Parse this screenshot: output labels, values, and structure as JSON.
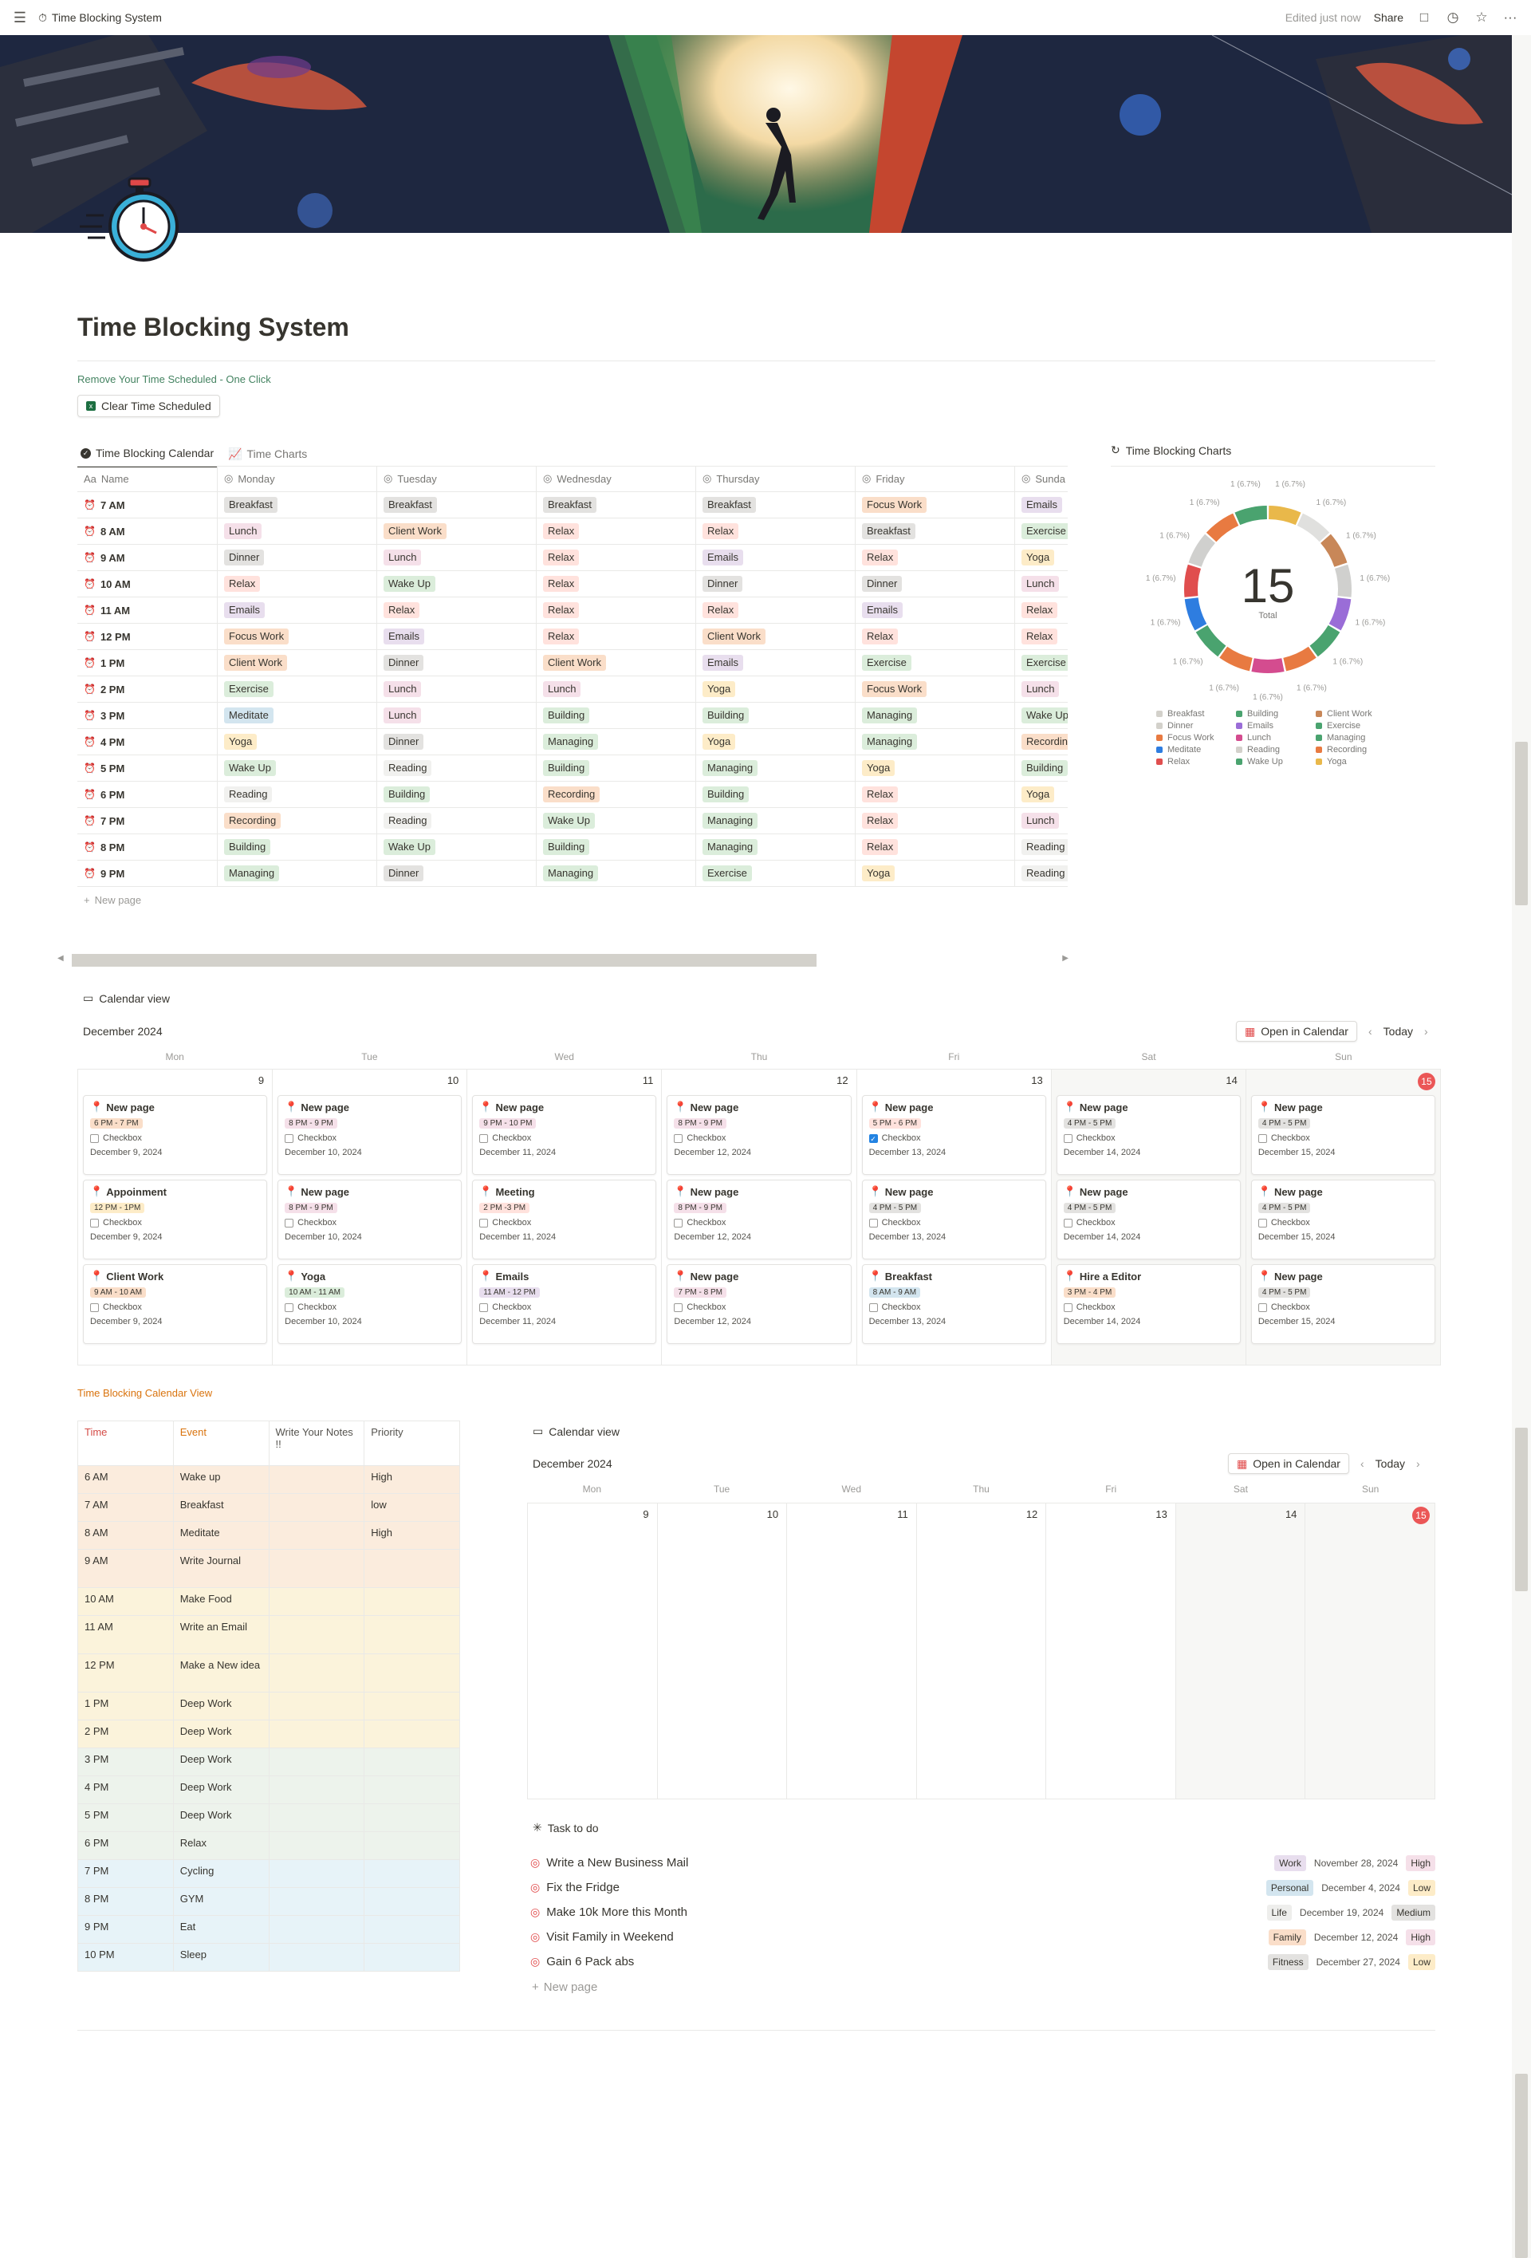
{
  "topbar": {
    "title": "Time Blocking System",
    "edited": "Edited just now",
    "share": "Share"
  },
  "page": {
    "title": "Time Blocking System",
    "clear_hint": "Remove Your Time Scheduled - One Click",
    "clear_button": "Clear Time Scheduled"
  },
  "tabs": [
    "Time Blocking Calendar",
    "Time Charts"
  ],
  "grid": {
    "headers": [
      "Name",
      "Monday",
      "Tuesday",
      "Wednesday",
      "Thursday",
      "Friday",
      "Sunda"
    ],
    "rows": [
      {
        "name": "7 AM",
        "cells": [
          "Breakfast",
          "Breakfast",
          "Breakfast",
          "Breakfast",
          "Focus Work",
          "Emails"
        ]
      },
      {
        "name": "8 AM",
        "cells": [
          "Lunch",
          "Client Work",
          "Relax",
          "Relax",
          "Breakfast",
          "Exercise"
        ]
      },
      {
        "name": "9 AM",
        "cells": [
          "Dinner",
          "Lunch",
          "Relax",
          "Emails",
          "Relax",
          "Yoga"
        ]
      },
      {
        "name": "10  AM",
        "cells": [
          "Relax",
          "Wake Up",
          "Relax",
          "Dinner",
          "Dinner",
          "Lunch"
        ]
      },
      {
        "name": "11  AM",
        "cells": [
          "Emails",
          "Relax",
          "Relax",
          "Relax",
          "Emails",
          "Relax"
        ]
      },
      {
        "name": "12 PM",
        "cells": [
          "Focus Work",
          "Emails",
          "Relax",
          "Client Work",
          "Relax",
          "Relax"
        ]
      },
      {
        "name": "1 PM",
        "cells": [
          "Client Work",
          "Dinner",
          "Client Work",
          "Emails",
          "Exercise",
          "Exercise"
        ]
      },
      {
        "name": "2 PM",
        "cells": [
          "Exercise",
          "Lunch",
          "Lunch",
          "Yoga",
          "Focus Work",
          "Lunch"
        ]
      },
      {
        "name": "3 PM",
        "cells": [
          "Meditate",
          "Lunch",
          "Building",
          "Building",
          "Managing",
          "Wake Up"
        ]
      },
      {
        "name": "4 PM",
        "cells": [
          "Yoga",
          "Dinner",
          "Managing",
          "Yoga",
          "Managing",
          "Recordin"
        ]
      },
      {
        "name": "5  PM",
        "cells": [
          "Wake Up",
          "Reading",
          "Building",
          "Managing",
          "Yoga",
          "Building"
        ]
      },
      {
        "name": "6 PM",
        "cells": [
          "Reading",
          "Building",
          "Recording",
          "Building",
          "Relax",
          "Yoga"
        ]
      },
      {
        "name": "7  PM",
        "cells": [
          "Recording",
          "Reading",
          "Wake Up",
          "Managing",
          "Relax",
          "Lunch"
        ]
      },
      {
        "name": "8 PM",
        "cells": [
          "Building",
          "Wake Up",
          "Building",
          "Managing",
          "Relax",
          "Reading"
        ]
      },
      {
        "name": "9 PM",
        "cells": [
          "Managing",
          "Dinner",
          "Managing",
          "Exercise",
          "Yoga",
          "Reading"
        ]
      }
    ],
    "new_page": "New page"
  },
  "tag_colors": {
    "Breakfast": "#e3e2e0",
    "Focus Work": "#fadec9",
    "Emails": "#e8deee",
    "Lunch": "#f5e0e9",
    "Client Work": "#fadec9",
    "Relax": "#ffe2dd",
    "Exercise": "#dbeddb",
    "Yoga": "#fdecc8",
    "Dinner": "#e3e2e0",
    "Wake Up": "#dbeddb",
    "Building": "#dbeddb",
    "Managing": "#dbeddb",
    "Meditate": "#d3e5ef",
    "Recording": "#fadec9",
    "Recordin": "#fadec9",
    "Reading": "#f1f1ef"
  },
  "charts": {
    "title": "Time Blocking Charts",
    "total": "15",
    "total_label": "Total",
    "slice_label": "1 (6.7%)",
    "slice_colors": [
      "#e9b84a",
      "#e0e0de",
      "#c88758",
      "#d0d0ce",
      "#9a6dd7",
      "#4aa36f",
      "#e87a41",
      "#d44c8f",
      "#e87a41",
      "#4aa36f",
      "#2e7de0",
      "#e04e4e",
      "#d0d0ce",
      "#e87a41",
      "#4aa36f"
    ],
    "legend": [
      {
        "label": "Breakfast",
        "color": "#d3d1cb"
      },
      {
        "label": "Building",
        "color": "#4aa36f"
      },
      {
        "label": "Client Work",
        "color": "#c88758"
      },
      {
        "label": "Dinner",
        "color": "#d3d1cb"
      },
      {
        "label": "Emails",
        "color": "#9a6dd7"
      },
      {
        "label": "Exercise",
        "color": "#4aa36f"
      },
      {
        "label": "Focus Work",
        "color": "#e87a41"
      },
      {
        "label": "Lunch",
        "color": "#d44c8f"
      },
      {
        "label": "Managing",
        "color": "#4aa36f"
      },
      {
        "label": "Meditate",
        "color": "#2e7de0"
      },
      {
        "label": "Reading",
        "color": "#d3d1cb"
      },
      {
        "label": "Recording",
        "color": "#e87a41"
      },
      {
        "label": "Relax",
        "color": "#e04e4e"
      },
      {
        "label": "Wake Up",
        "color": "#4aa36f"
      },
      {
        "label": "Yoga",
        "color": "#e9b84a"
      }
    ]
  },
  "calendar1": {
    "label": "Calendar view",
    "month": "December 2024",
    "open_btn": "Open in Calendar",
    "today_btn": "Today",
    "dows": [
      "Mon",
      "Tue",
      "Wed",
      "Thu",
      "Fri",
      "Sat",
      "Sun"
    ],
    "days": [
      "9",
      "10",
      "11",
      "12",
      "13",
      "14",
      "15"
    ],
    "checkbox_label": "Checkbox",
    "cards": [
      [
        {
          "t": "New page",
          "time": "6 PM - 7 PM",
          "tc": "#fadec9",
          "d": "December 9, 2024"
        },
        {
          "t": "Appoinment",
          "time": "12 PM - 1PM",
          "tc": "#fdecc8",
          "d": "December 9, 2024"
        },
        {
          "t": "Client Work",
          "time": "9 AM - 10 AM",
          "tc": "#fadec9",
          "d": "December 9, 2024"
        }
      ],
      [
        {
          "t": "New page",
          "time": "8 PM - 9 PM",
          "tc": "#f5e0e9",
          "d": "December 10, 2024"
        },
        {
          "t": "New page",
          "time": "8 PM - 9 PM",
          "tc": "#f5e0e9",
          "d": "December 10, 2024"
        },
        {
          "t": "Yoga",
          "time": "10 AM - 11 AM",
          "tc": "#dbeddb",
          "d": "December 10, 2024"
        }
      ],
      [
        {
          "t": "New page",
          "time": "9 PM - 10 PM",
          "tc": "#f5e0e9",
          "d": "December 11, 2024"
        },
        {
          "t": "Meeting",
          "time": "2 PM -3 PM",
          "tc": "#ffe2dd",
          "d": "December 11, 2024"
        },
        {
          "t": "Emails",
          "time": "11 AM - 12 PM",
          "tc": "#e8deee",
          "d": "December 11, 2024"
        }
      ],
      [
        {
          "t": "New page",
          "time": "8 PM - 9 PM",
          "tc": "#f5e0e9",
          "d": "December 12, 2024"
        },
        {
          "t": "New page",
          "time": "8 PM - 9 PM",
          "tc": "#f5e0e9",
          "d": "December 12, 2024"
        },
        {
          "t": "New page",
          "time": "7 PM - 8 PM",
          "tc": "#f5e0e9",
          "d": "December 12, 2024"
        }
      ],
      [
        {
          "t": "New page",
          "time": "5 PM - 6 PM",
          "tc": "#ffe2dd",
          "d": "December 13, 2024",
          "checked": true
        },
        {
          "t": "New page",
          "time": "4 PM - 5 PM",
          "tc": "#e3e2e0",
          "d": "December 13, 2024"
        },
        {
          "t": "Breakfast",
          "time": "8 AM - 9 AM",
          "tc": "#d3e5ef",
          "d": "December 13, 2024"
        }
      ],
      [
        {
          "t": "New page",
          "time": "4 PM - 5 PM",
          "tc": "#e3e2e0",
          "d": "December 14, 2024"
        },
        {
          "t": "New page",
          "time": "4 PM - 5 PM",
          "tc": "#e3e2e0",
          "d": "December 14, 2024"
        },
        {
          "t": "Hire a Editor",
          "time": "3 PM - 4 PM",
          "tc": "#fadec9",
          "d": "December 14, 2024"
        }
      ],
      [
        {
          "t": "New page",
          "time": "4 PM - 5 PM",
          "tc": "#e3e2e0",
          "d": "December 15, 2024"
        },
        {
          "t": "New page",
          "time": "4 PM - 5 PM",
          "tc": "#e3e2e0",
          "d": "December 15, 2024"
        },
        {
          "t": "New page",
          "time": "4 PM - 5 PM",
          "tc": "#e3e2e0",
          "d": "December 15, 2024"
        }
      ]
    ]
  },
  "schedule": {
    "title": "Time Blocking Calendar View",
    "headers": [
      "Time",
      "Event",
      "Write Your Notes !!",
      "Priority"
    ],
    "rows": [
      {
        "time": "6 AM",
        "event": " Wake up",
        "notes": "",
        "priority": "High",
        "bg": "#fbecdd"
      },
      {
        "time": "7  AM",
        "event": "Breakfast",
        "notes": "",
        "priority": "low",
        "bg": "#fbecdd"
      },
      {
        "time": "8 AM",
        "event": "Meditate",
        "notes": "",
        "priority": "High",
        "bg": "#fbecdd"
      },
      {
        "time": "9 AM",
        "event": "Write Journal",
        "notes": "",
        "priority": "",
        "bg": "#fbecdd"
      },
      {
        "time": "10 AM",
        "event": "Make Food",
        "notes": "",
        "priority": "",
        "bg": "#fbf3db"
      },
      {
        "time": "11 AM",
        "event": "Write an Email",
        "notes": "",
        "priority": "",
        "bg": "#fbf3db"
      },
      {
        "time": "12 PM",
        "event": "Make a New idea",
        "notes": "",
        "priority": "",
        "bg": "#fbf3db"
      },
      {
        "time": "1 PM",
        "event": "Deep Work",
        "notes": "",
        "priority": "",
        "bg": "#fbf3db"
      },
      {
        "time": "2 PM",
        "event": "Deep Work",
        "notes": "",
        "priority": "",
        "bg": "#fbf3db"
      },
      {
        "time": "3 PM",
        "event": "Deep Work",
        "notes": "",
        "priority": "",
        "bg": "#edf3ec"
      },
      {
        "time": "4 PM",
        "event": "Deep Work",
        "notes": "",
        "priority": "",
        "bg": "#edf3ec"
      },
      {
        "time": "5 PM",
        "event": "Deep Work",
        "notes": "",
        "priority": "",
        "bg": "#edf3ec"
      },
      {
        "time": "6 PM",
        "event": "Relax",
        "notes": "",
        "priority": "",
        "bg": "#edf3ec"
      },
      {
        "time": "7 PM",
        "event": "Cycling",
        "notes": "",
        "priority": "",
        "bg": "#e7f3f8"
      },
      {
        "time": "8 PM",
        "event": "GYM",
        "notes": "",
        "priority": "",
        "bg": "#e7f3f8"
      },
      {
        "time": "9 PM",
        "event": "Eat",
        "notes": "",
        "priority": "",
        "bg": "#e7f3f8"
      },
      {
        "time": "10 PM",
        "event": "Sleep",
        "notes": "",
        "priority": "",
        "bg": "#e7f3f8"
      }
    ]
  },
  "calendar2": {
    "label": "Calendar view",
    "month": "December 2024",
    "open_btn": "Open in Calendar",
    "today_btn": "Today",
    "dows": [
      "Mon",
      "Tue",
      "Wed",
      "Thu",
      "Fri",
      "Sat",
      "Sun"
    ],
    "days": [
      "9",
      "10",
      "11",
      "12",
      "13",
      "14",
      "15"
    ]
  },
  "tasks": {
    "title": "Task to do",
    "items": [
      {
        "name": "Write a New Business Mail",
        "cat": "Work",
        "cat_bg": "#e8deee",
        "date": "November 28, 2024",
        "prio": "High",
        "prio_bg": "#f5e0e9"
      },
      {
        "name": "Fix the Fridge",
        "cat": "Personal",
        "cat_bg": "#d3e5ef",
        "date": "December 4, 2024",
        "prio": "Low",
        "prio_bg": "#fdecc8"
      },
      {
        "name": "Make 10k More this Month",
        "cat": "Life",
        "cat_bg": "#eeeeec",
        "date": "December 19, 2024",
        "prio": "Medium",
        "prio_bg": "#e3e2e0"
      },
      {
        "name": "Visit Family in Weekend",
        "cat": "Family",
        "cat_bg": "#fadec9",
        "date": "December 12, 2024",
        "prio": "High",
        "prio_bg": "#f5e0e9"
      },
      {
        "name": "Gain 6 Pack abs",
        "cat": "Fitness",
        "cat_bg": "#e3e2e0",
        "date": "December 27, 2024",
        "prio": "Low",
        "prio_bg": "#fdecc8"
      }
    ],
    "new_page": "New page"
  }
}
